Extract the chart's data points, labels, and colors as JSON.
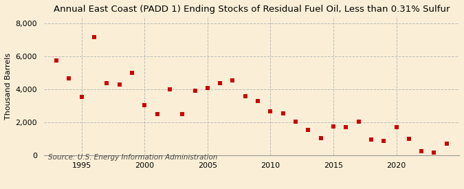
{
  "title": "Annual East Coast (PADD 1) Ending Stocks of Residual Fuel Oil, Less than 0.31% Sulfur",
  "ylabel": "Thousand Barrels",
  "source": "Source: U.S. Energy Information Administration",
  "background_color": "#faefd6",
  "marker_color": "#cc0000",
  "grid_color": "#bbbbbb",
  "years": [
    1993,
    1994,
    1995,
    1996,
    1997,
    1998,
    1999,
    2000,
    2001,
    2002,
    2003,
    2004,
    2005,
    2006,
    2007,
    2008,
    2009,
    2010,
    2011,
    2012,
    2013,
    2014,
    2015,
    2016,
    2017,
    2018,
    2019,
    2020,
    2021,
    2022,
    2023,
    2024
  ],
  "values": [
    5750,
    4650,
    3550,
    7150,
    4350,
    4300,
    5000,
    3050,
    2500,
    4000,
    2500,
    3900,
    4100,
    4350,
    4550,
    3600,
    3300,
    2650,
    2550,
    2050,
    1550,
    1050,
    1750,
    1700,
    2050,
    950,
    900,
    1700,
    1000,
    250,
    200,
    700
  ],
  "xlim": [
    1992.0,
    2025.0
  ],
  "ylim": [
    0,
    8400
  ],
  "yticks": [
    0,
    2000,
    4000,
    6000,
    8000
  ],
  "xticks": [
    1995,
    2000,
    2005,
    2010,
    2015,
    2020
  ],
  "title_fontsize": 9.5,
  "ylabel_fontsize": 8,
  "tick_fontsize": 8,
  "source_fontsize": 7.5
}
